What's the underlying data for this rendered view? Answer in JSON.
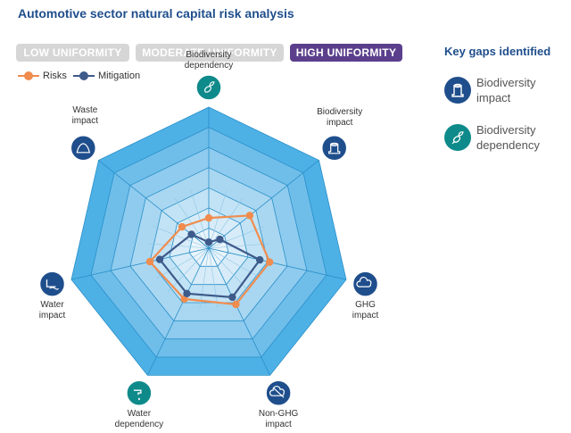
{
  "title": "Automotive sector natural capital risk analysis",
  "uniformity": {
    "low": "LOW UNIFORMITY",
    "moderate": "MODERATE UNIFORMITY",
    "high": "HIGH UNIFORMITY",
    "active": "high"
  },
  "key_gaps": {
    "title": "Key gaps identified",
    "items": [
      {
        "line1": "Biodiversity",
        "line2": "impact",
        "icon": "tree-stump-icon",
        "color": "#1f4e8c"
      },
      {
        "line1": "Biodiversity",
        "line2": "dependency",
        "icon": "bee-icon",
        "color": "#0f8a8a"
      }
    ]
  },
  "chart_data": {
    "type": "radar",
    "title": "",
    "levels": 7,
    "max": 7,
    "axes": [
      {
        "lines": [
          "Biodiversity",
          "dependency"
        ],
        "icon": "bee-icon",
        "color": "#0f8a8a"
      },
      {
        "lines": [
          "Biodiversity",
          "impact"
        ],
        "icon": "tree-stump-icon",
        "color": "#1f4e8c"
      },
      {
        "lines": [
          "GHG",
          "impact"
        ],
        "icon": "ghg-cloud-icon",
        "color": "#1f4e8c"
      },
      {
        "lines": [
          "Non-GHG",
          "impact"
        ],
        "icon": "non-ghg-cloud-icon",
        "color": "#1f4e8c"
      },
      {
        "lines": [
          "Water",
          "dependency"
        ],
        "icon": "water-tap-icon",
        "color": "#0f8a8a"
      },
      {
        "lines": [
          "Water",
          "impact"
        ],
        "icon": "water-outflow-icon",
        "color": "#1f4e8c"
      },
      {
        "lines": [
          "Waste",
          "impact"
        ],
        "icon": "waste-pile-icon",
        "color": "#1f4e8c"
      }
    ],
    "series": [
      {
        "name": "Risks",
        "color": "#f08c4e",
        "values": [
          1.5,
          2.6,
          3.1,
          3.1,
          2.8,
          3.0,
          1.7
        ]
      },
      {
        "name": "Mitigation",
        "color": "#3d5a8a",
        "values": [
          0.3,
          0.7,
          2.6,
          2.7,
          2.5,
          2.5,
          1.1
        ]
      }
    ],
    "band_colors": [
      "#e9f4fb",
      "#d7ecf8",
      "#c2e3f5",
      "#a9d7f1",
      "#8ecbee",
      "#6fbeea",
      "#4db1e6"
    ]
  }
}
